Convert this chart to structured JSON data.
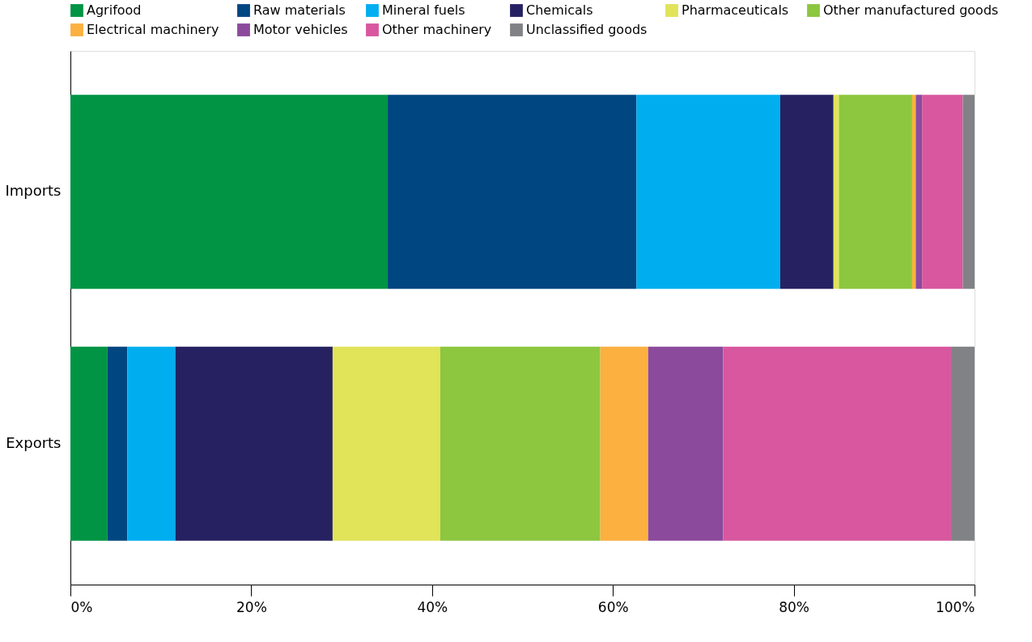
{
  "chart_data": {
    "type": "bar",
    "orientation": "horizontal",
    "stacked": true,
    "categories": [
      "Imports",
      "Exports"
    ],
    "series": [
      {
        "name": "Agrifood",
        "color": "#009444",
        "values": [
          35.1,
          4.1
        ]
      },
      {
        "name": "Raw materials",
        "color": "#004680",
        "values": [
          27.5,
          2.2
        ]
      },
      {
        "name": "Mineral fuels",
        "color": "#00aeef",
        "values": [
          15.9,
          5.3
        ]
      },
      {
        "name": "Chemicals",
        "color": "#262262",
        "values": [
          5.9,
          17.4
        ]
      },
      {
        "name": "Pharmaceuticals",
        "color": "#e1e359",
        "values": [
          0.6,
          11.9
        ]
      },
      {
        "name": "Other manufactured goods",
        "color": "#8dc63f",
        "values": [
          8.1,
          17.7
        ]
      },
      {
        "name": "Electrical machinery",
        "color": "#fbb040",
        "values": [
          0.4,
          5.3
        ]
      },
      {
        "name": "Motor vehicles",
        "color": "#8b4a9c",
        "values": [
          0.7,
          8.3
        ]
      },
      {
        "name": "Other machinery",
        "color": "#d8579f",
        "values": [
          4.5,
          25.2
        ]
      },
      {
        "name": "Unclassified goods",
        "color": "#808285",
        "values": [
          1.3,
          2.6
        ]
      }
    ],
    "xlim": [
      0,
      100
    ],
    "xticks": [
      {
        "value": 0,
        "label": "0%"
      },
      {
        "value": 20,
        "label": "20%"
      },
      {
        "value": 40,
        "label": "40%"
      },
      {
        "value": 60,
        "label": "60%"
      },
      {
        "value": 80,
        "label": "80%"
      },
      {
        "value": 100,
        "label": "100%"
      }
    ],
    "legend": "top",
    "grid": false
  }
}
